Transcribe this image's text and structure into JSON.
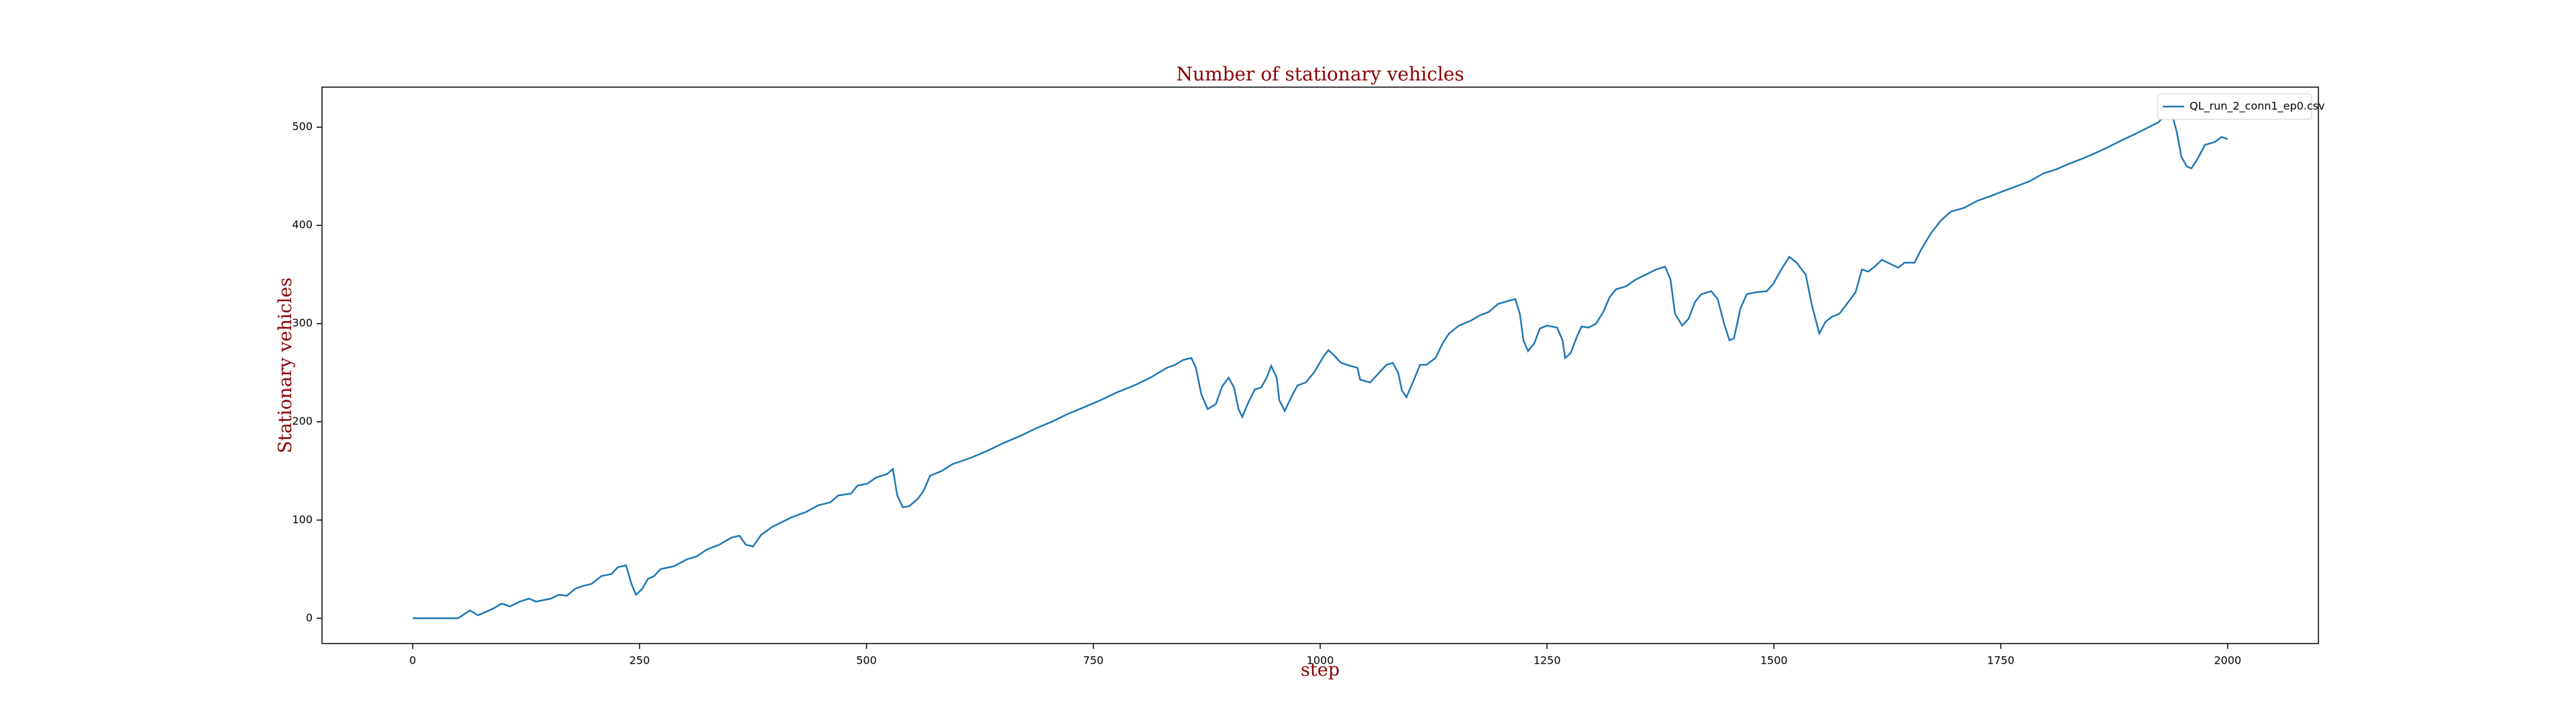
{
  "chart_data": {
    "type": "line",
    "title": "Number of stationary vehicles",
    "x_label": "step",
    "y_label": "Stationary vehicles",
    "x": [
      0,
      50,
      63,
      72,
      89,
      98,
      107,
      118,
      128,
      136,
      152,
      161,
      170,
      179,
      188,
      197,
      208,
      219,
      226,
      235,
      241,
      246,
      253,
      259,
      266,
      273,
      288,
      302,
      313,
      324,
      338,
      351,
      360,
      367,
      375,
      384,
      396,
      407,
      418,
      433,
      447,
      460,
      469,
      483,
      490,
      501,
      510,
      523,
      529,
      534,
      540,
      547,
      557,
      563,
      570,
      583,
      595,
      614,
      632,
      650,
      668,
      686,
      704,
      722,
      740,
      758,
      776,
      795,
      813,
      831,
      840,
      849,
      858,
      863,
      869,
      876,
      885,
      892,
      899,
      905,
      910,
      914,
      921,
      928,
      935,
      941,
      946,
      952,
      955,
      961,
      968,
      975,
      984,
      993,
      1004,
      1009,
      1015,
      1023,
      1033,
      1041,
      1044,
      1055,
      1065,
      1073,
      1080,
      1086,
      1090,
      1095,
      1102,
      1110,
      1117,
      1127,
      1135,
      1142,
      1153,
      1166,
      1175,
      1186,
      1196,
      1207,
      1215,
      1220,
      1224,
      1229,
      1236,
      1242,
      1250,
      1261,
      1267,
      1270,
      1276,
      1283,
      1288,
      1296,
      1304,
      1312,
      1319,
      1326,
      1337,
      1348,
      1359,
      1370,
      1380,
      1386,
      1391,
      1399,
      1406,
      1413,
      1420,
      1431,
      1438,
      1445,
      1451,
      1456,
      1463,
      1470,
      1481,
      1492,
      1499,
      1508,
      1517,
      1525,
      1535,
      1542,
      1550,
      1557,
      1564,
      1572,
      1582,
      1590,
      1597,
      1604,
      1611,
      1619,
      1630,
      1637,
      1644,
      1655,
      1662,
      1673,
      1684,
      1695,
      1710,
      1724,
      1739,
      1753,
      1768,
      1782,
      1797,
      1811,
      1826,
      1840,
      1855,
      1869,
      1884,
      1898,
      1913,
      1924,
      1931,
      1938,
      1944,
      1949,
      1955,
      1960,
      1967,
      1975,
      1986,
      1993,
      2000
    ],
    "series": [
      {
        "name": "QL_run_2_conn1_ep0.csv",
        "color": "#1f77b4",
        "values": [
          0,
          0,
          8,
          3,
          10,
          15,
          12,
          17,
          20,
          17,
          20,
          24,
          23,
          30,
          33,
          35,
          43,
          45,
          52,
          54,
          35,
          24,
          30,
          40,
          43,
          50,
          53,
          60,
          63,
          70,
          75,
          82,
          84,
          75,
          73,
          85,
          93,
          98,
          103,
          108,
          115,
          118,
          125,
          127,
          135,
          137,
          143,
          147,
          152,
          125,
          113,
          114,
          122,
          130,
          145,
          150,
          157,
          163,
          170,
          178,
          185,
          193,
          200,
          208,
          215,
          222,
          230,
          237,
          245,
          255,
          258,
          263,
          265,
          255,
          228,
          213,
          218,
          236,
          245,
          235,
          213,
          205,
          220,
          233,
          235,
          245,
          257,
          245,
          222,
          211,
          225,
          237,
          240,
          250,
          267,
          273,
          268,
          260,
          257,
          255,
          243,
          240,
          250,
          258,
          260,
          250,
          232,
          225,
          240,
          258,
          258,
          265,
          280,
          290,
          298,
          303,
          308,
          312,
          320,
          323,
          325,
          310,
          283,
          272,
          280,
          295,
          298,
          296,
          283,
          265,
          270,
          287,
          297,
          296,
          300,
          312,
          327,
          335,
          338,
          345,
          350,
          355,
          358,
          345,
          310,
          298,
          305,
          322,
          330,
          333,
          325,
          300,
          283,
          285,
          315,
          330,
          332,
          333,
          340,
          355,
          368,
          362,
          350,
          318,
          290,
          302,
          307,
          310,
          322,
          332,
          355,
          353,
          358,
          365,
          360,
          357,
          362,
          362,
          375,
          392,
          405,
          414,
          418,
          425,
          430,
          435,
          440,
          445,
          453,
          457,
          463,
          468,
          474,
          480,
          487,
          493,
          500,
          505,
          513,
          515,
          495,
          470,
          460,
          458,
          468,
          482,
          485,
          490,
          488
        ]
      }
    ],
    "xlim": [
      -100,
      2100
    ],
    "ylim": [
      -25.75,
      540.75
    ],
    "xticks": [
      0,
      250,
      500,
      750,
      1000,
      1250,
      1500,
      1750,
      2000
    ],
    "yticks": [
      0,
      100,
      200,
      300,
      400,
      500
    ],
    "grid": false,
    "legend": "upper right"
  }
}
